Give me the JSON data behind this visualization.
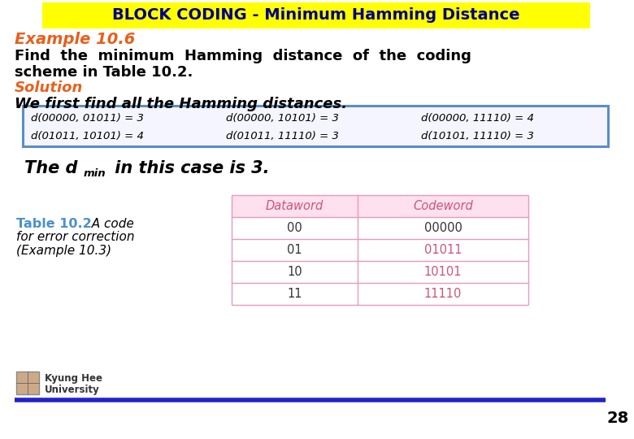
{
  "title": "BLOCK CODING - Minimum Hamming Distance",
  "title_bg": "#FFFF00",
  "title_color": "#00008B",
  "example_label": "Example 10.6",
  "example_color": "#E8601C",
  "body_text1a": "Find  the  minimum  Hamming  distance  of  the  coding",
  "body_text1b": "scheme in Table 10.2.",
  "solution_label": "Solution",
  "solution_color": "#E8601C",
  "body_text2": "We first find all the Hamming distances.",
  "hamming_rows": [
    [
      "d(00000, 01011) = 3",
      "d(00000, 10101) = 3",
      "d(00000, 11110) = 4"
    ],
    [
      "d(01011, 10101) = 4",
      "d(01011, 11110) = 3",
      "d(10101, 11110) = 3"
    ]
  ],
  "hamming_box_color": "#5B8EC4",
  "hamming_box_fill": "#F5F5FF",
  "table_title": "Table 10.2",
  "table_title_color": "#4B90CC",
  "table_header": [
    "Dataword",
    "Codeword"
  ],
  "table_header_color": "#CC5577",
  "table_rows": [
    [
      "00",
      "00000"
    ],
    [
      "01",
      "01011"
    ],
    [
      "10",
      "10101"
    ],
    [
      "11",
      "11110"
    ]
  ],
  "table_codeword_colors": [
    "#333333",
    "#CC5577",
    "#CC5577",
    "#CC5577"
  ],
  "table_border_color": "#E899BB",
  "footer_line_color": "#2222CC",
  "page_number": "28",
  "bg_color": "#FFFFFF"
}
